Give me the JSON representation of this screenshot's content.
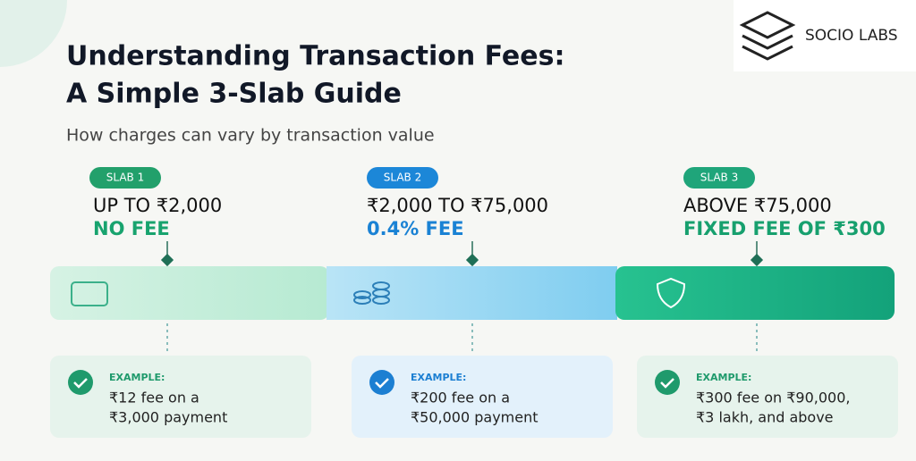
{
  "logo": {
    "text": "SOCIO LABS"
  },
  "header": {
    "title_line1": "Understanding Transaction Fees:",
    "title_line2": "A Simple 3-Slab Guide",
    "subtitle": "How charges can vary by transaction value"
  },
  "slabs": [
    {
      "badge": "SLAB 1",
      "range": "UP TO ₹2,000",
      "fee": "NO FEE",
      "example_label": "EXAMPLE:",
      "example_line1": "₹12 fee on a",
      "example_line2": "₹3,000 payment"
    },
    {
      "badge": "SLAB 2",
      "range": "₹2,000 TO ₹75,000",
      "fee": "0.4% FEE",
      "example_label": "EXAMPLE:",
      "example_line1": "₹200 fee on a",
      "example_line2": "₹50,000 payment"
    },
    {
      "badge": "SLAB 3",
      "range": "ABOVE ₹75,000",
      "fee": "FIXED FEE OF ₹300",
      "example_label": "EXAMPLE:",
      "example_line1": "₹300 fee on ₹90,000,",
      "example_line2": "₹3 lakh, and above"
    }
  ]
}
